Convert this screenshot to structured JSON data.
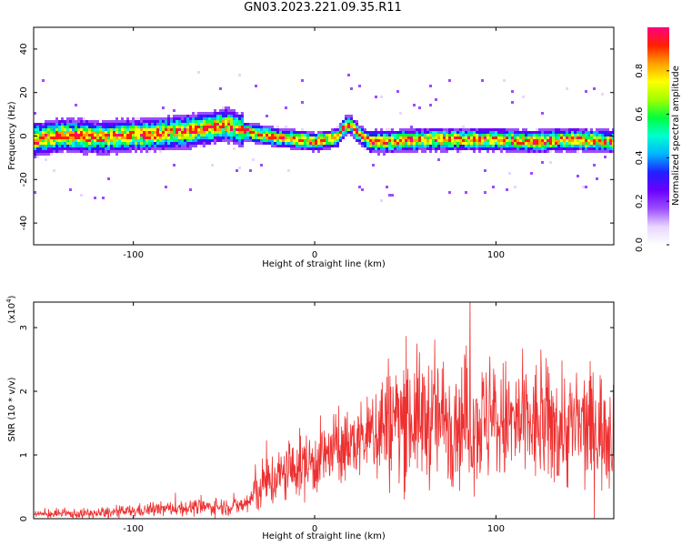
{
  "title": "GN03.2023.221.09.35.R11",
  "chart_data": [
    {
      "type": "heatmap",
      "xlabel": "Height of straight line (km)",
      "ylabel": "Frequency (Hz)",
      "xlim": [
        -155,
        165
      ],
      "ylim": [
        -50,
        50
      ],
      "xticks": [
        -100,
        0,
        100
      ],
      "yticks": [
        -40,
        -20,
        0,
        20,
        40
      ],
      "grid": false,
      "ridge": {
        "x": [
          -155,
          -140,
          -120,
          -100,
          -80,
          -60,
          -50,
          -40,
          -30,
          -20,
          -10,
          0,
          5,
          12,
          16,
          19,
          22,
          26,
          30,
          40,
          60,
          80,
          100,
          120,
          140,
          165
        ],
        "y": [
          -1,
          1,
          0,
          1,
          2,
          4,
          6,
          3,
          1,
          0,
          -1,
          -2,
          -1,
          0,
          5,
          6,
          3,
          0,
          -2,
          -2,
          -1,
          -1,
          -1,
          -2,
          -1,
          -2
        ]
      },
      "colorbar": {
        "label": "Normalized spectral amplitude",
        "range": [
          0,
          1
        ],
        "ticks": [
          0.0,
          0.2,
          0.4,
          0.6,
          0.8
        ],
        "colors": [
          "#ffffff",
          "#e8d6ff",
          "#9a4dff",
          "#6a00ff",
          "#2020ff",
          "#00b4ff",
          "#00ffd0",
          "#00ff40",
          "#a0ff00",
          "#ffff00",
          "#ffa000",
          "#ff2000",
          "#ff0080"
        ]
      }
    },
    {
      "type": "line",
      "xlabel": "Height of straight line (km)",
      "ylabel": "SNR (10 * v/v)",
      "scale_label": "(x10",
      "scale_exp": "4",
      "scale_close": ")",
      "xlim": [
        -155,
        165
      ],
      "ylim": [
        0,
        3.4
      ],
      "xticks": [
        -100,
        0,
        100
      ],
      "yticks": [
        0,
        1,
        2,
        3
      ],
      "color": "#ee3030",
      "envelope": {
        "x": [
          -155,
          -120,
          -100,
          -80,
          -60,
          -40,
          -35,
          -30,
          -20,
          -10,
          0,
          10,
          20,
          25,
          30,
          35,
          50,
          70,
          100,
          130,
          165
        ],
        "y": [
          0.07,
          0.08,
          0.12,
          0.16,
          0.18,
          0.2,
          0.3,
          0.5,
          0.65,
          0.8,
          0.9,
          1.05,
          1.15,
          1.25,
          1.3,
          1.45,
          1.6,
          1.55,
          1.5,
          1.45,
          1.4
        ]
      },
      "noise_amplitude": {
        "x": [
          -155,
          -40,
          -30,
          0,
          30,
          35,
          165
        ],
        "y": [
          0.05,
          0.12,
          0.35,
          0.45,
          0.5,
          0.85,
          0.8
        ]
      }
    }
  ]
}
